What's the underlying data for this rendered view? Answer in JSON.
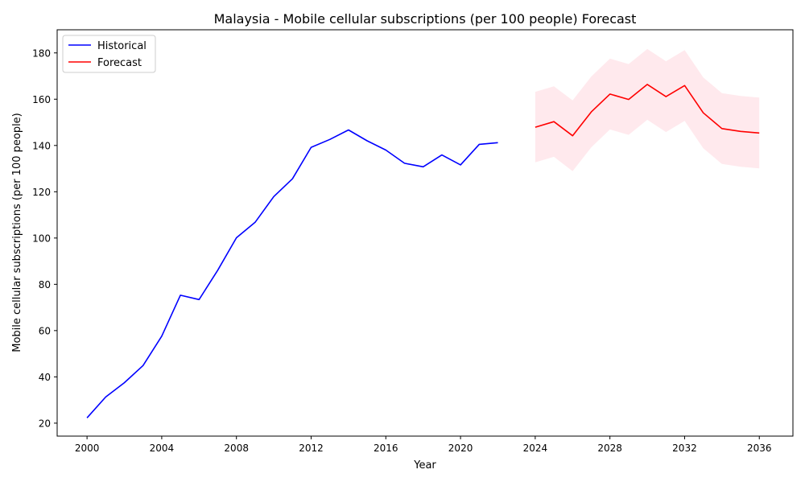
{
  "chart_data": {
    "type": "line",
    "title": "Malaysia - Mobile cellular subscriptions (per 100 people) Forecast",
    "xlabel": "Year",
    "ylabel": "Mobile cellular subscriptions (per 100 people)",
    "xlim": [
      1998.4,
      2037.8
    ],
    "ylim": [
      14.4,
      190.0
    ],
    "xticks": [
      2000,
      2004,
      2008,
      2012,
      2016,
      2020,
      2024,
      2028,
      2032,
      2036
    ],
    "yticks": [
      20,
      40,
      60,
      80,
      100,
      120,
      140,
      160,
      180
    ],
    "grid": false,
    "legend_position": "top-left",
    "series": [
      {
        "name": "Historical",
        "color": "#0000ff",
        "x": [
          2000,
          2001,
          2002,
          2003,
          2004,
          2005,
          2006,
          2007,
          2008,
          2009,
          2010,
          2011,
          2012,
          2013,
          2014,
          2015,
          2016,
          2017,
          2018,
          2019,
          2020,
          2021,
          2022
        ],
        "y": [
          22.3,
          31.3,
          37.5,
          44.9,
          57.6,
          75.3,
          73.4,
          86.1,
          100.1,
          106.8,
          117.9,
          125.6,
          139.2,
          142.6,
          146.7,
          142.0,
          138.0,
          132.3,
          130.8,
          135.9,
          131.6,
          140.5,
          141.2
        ]
      },
      {
        "name": "Forecast",
        "color": "#ff0000",
        "x": [
          2024,
          2025,
          2026,
          2027,
          2028,
          2029,
          2030,
          2031,
          2032,
          2033,
          2034,
          2035,
          2036
        ],
        "y": [
          147.9,
          150.3,
          144.2,
          154.5,
          162.2,
          159.9,
          166.4,
          161.1,
          165.9,
          154.1,
          147.3,
          146.1,
          145.4
        ]
      }
    ],
    "confidence_band": {
      "color": "#ffc0cb",
      "opacity": 0.35,
      "x": [
        2024,
        2025,
        2026,
        2027,
        2028,
        2029,
        2030,
        2031,
        2032,
        2033,
        2034,
        2035,
        2036
      ],
      "lower": [
        132.7,
        135.1,
        128.9,
        139.2,
        146.9,
        144.6,
        151.1,
        145.8,
        150.6,
        138.8,
        132.0,
        130.8,
        130.1
      ],
      "upper": [
        163.2,
        165.6,
        159.5,
        169.8,
        177.5,
        175.2,
        181.7,
        176.4,
        181.2,
        169.4,
        162.6,
        161.4,
        160.7
      ]
    }
  }
}
